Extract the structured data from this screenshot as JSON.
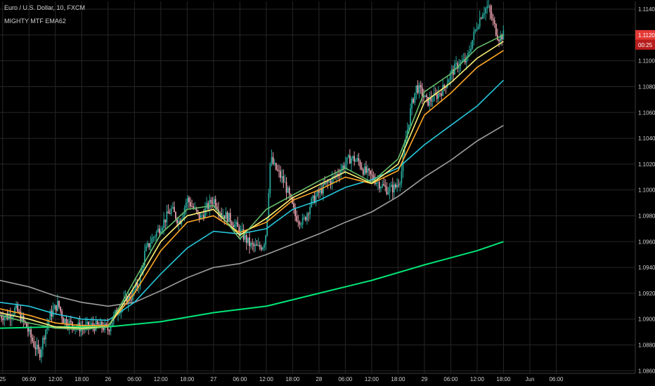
{
  "header": {
    "symbol_title": "Euro / U.S. Dollar, 10, FXCM",
    "indicator_title": "MIGHTY MTF EMA62"
  },
  "price_badge": {
    "value": "1.1120",
    "countdown": "00:25",
    "color": "#e53935"
  },
  "colors": {
    "background": "#000000",
    "grid": "#262626",
    "axis_text": "#cfcfcf",
    "candle_up": "#26a69a",
    "candle_down": "#e8a0ad"
  },
  "chart_data": {
    "type": "line",
    "title": "Euro / U.S. Dollar, 10, FXCM",
    "subtitle": "MIGHTY MTF EMA62",
    "xlabel": "",
    "ylabel": "",
    "grid": true,
    "ylim": [
      1.0858,
      1.1146
    ],
    "xlim": [
      -0.05,
      12.0
    ],
    "y_ticks": [
      "1.0860",
      "1.0880",
      "1.0900",
      "1.0920",
      "1.0940",
      "1.0960",
      "1.0980",
      "1.1000",
      "1.1020",
      "1.1040",
      "1.1060",
      "1.1080",
      "1.1100",
      "1.1120",
      "1.1140"
    ],
    "x_ticks": [
      {
        "label": "25",
        "x": 0
      },
      {
        "label": "06:00",
        "x": 0.5
      },
      {
        "label": "12:00",
        "x": 1
      },
      {
        "label": "18:00",
        "x": 1.5
      },
      {
        "label": "26",
        "x": 2
      },
      {
        "label": "06:00",
        "x": 2.5
      },
      {
        "label": "12:00",
        "x": 3
      },
      {
        "label": "18:00",
        "x": 3.5
      },
      {
        "label": "27",
        "x": 4
      },
      {
        "label": "06:00",
        "x": 4.5
      },
      {
        "label": "12:00",
        "x": 5
      },
      {
        "label": "18:00",
        "x": 5.5
      },
      {
        "label": "28",
        "x": 6
      },
      {
        "label": "06:00",
        "x": 6.5
      },
      {
        "label": "12:00",
        "x": 7
      },
      {
        "label": "18:00",
        "x": 7.5
      },
      {
        "label": "29",
        "x": 8
      },
      {
        "label": "06:00",
        "x": 8.5
      },
      {
        "label": "12:00",
        "x": 9
      },
      {
        "label": "18:00",
        "x": 9.5
      },
      {
        "label": "Jun",
        "x": 10
      },
      {
        "label": "06:00",
        "x": 10.5
      }
    ],
    "price_path": [
      [
        -0.05,
        1.0903
      ],
      [
        0.1,
        1.0902
      ],
      [
        0.25,
        1.0908
      ],
      [
        0.45,
        1.0894
      ],
      [
        0.6,
        1.088
      ],
      [
        0.7,
        1.0873
      ],
      [
        0.8,
        1.089
      ],
      [
        0.9,
        1.0903
      ],
      [
        1.05,
        1.0912
      ],
      [
        1.15,
        1.09
      ],
      [
        1.3,
        1.0896
      ],
      [
        1.5,
        1.0893
      ],
      [
        1.7,
        1.0895
      ],
      [
        1.9,
        1.0894
      ],
      [
        2.0,
        1.0892
      ],
      [
        2.15,
        1.0905
      ],
      [
        2.3,
        1.0913
      ],
      [
        2.45,
        1.0918
      ],
      [
        2.6,
        1.093
      ],
      [
        2.7,
        1.0952
      ],
      [
        2.85,
        1.0963
      ],
      [
        3.0,
        1.0972
      ],
      [
        3.2,
        1.0985
      ],
      [
        3.35,
        1.0975
      ],
      [
        3.5,
        1.0993
      ],
      [
        3.6,
        1.0987
      ],
      [
        3.75,
        1.0978
      ],
      [
        3.85,
        1.0985
      ],
      [
        4.0,
        1.0993
      ],
      [
        4.15,
        1.0982
      ],
      [
        4.3,
        1.0978
      ],
      [
        4.5,
        1.0968
      ],
      [
        4.7,
        1.0957
      ],
      [
        4.85,
        1.0955
      ],
      [
        4.95,
        1.0958
      ],
      [
        5.0,
        1.0968
      ],
      [
        5.08,
        1.1025
      ],
      [
        5.15,
        1.1018
      ],
      [
        5.25,
        1.1012
      ],
      [
        5.35,
        1.1005
      ],
      [
        5.45,
        1.0993
      ],
      [
        5.55,
        1.098
      ],
      [
        5.7,
        1.0975
      ],
      [
        5.85,
        1.099
      ],
      [
        6.0,
        1.0998
      ],
      [
        6.15,
        1.1005
      ],
      [
        6.3,
        1.101
      ],
      [
        6.45,
        1.1018
      ],
      [
        6.6,
        1.1025
      ],
      [
        6.75,
        1.1022
      ],
      [
        6.85,
        1.1015
      ],
      [
        7.0,
        1.101
      ],
      [
        7.15,
        1.1005
      ],
      [
        7.3,
        1.1
      ],
      [
        7.45,
        1.1002
      ],
      [
        7.55,
        1.101
      ],
      [
        7.65,
        1.104
      ],
      [
        7.75,
        1.1065
      ],
      [
        7.85,
        1.108
      ],
      [
        7.95,
        1.1075
      ],
      [
        8.05,
        1.1068
      ],
      [
        8.2,
        1.1072
      ],
      [
        8.35,
        1.1078
      ],
      [
        8.5,
        1.109
      ],
      [
        8.65,
        1.1098
      ],
      [
        8.8,
        1.11
      ],
      [
        8.9,
        1.1115
      ],
      [
        9.0,
        1.1128
      ],
      [
        9.1,
        1.1138
      ],
      [
        9.2,
        1.1142
      ],
      [
        9.3,
        1.113
      ],
      [
        9.4,
        1.1118
      ],
      [
        9.5,
        1.112
      ]
    ],
    "series": [
      {
        "color": "#00e676",
        "values": [
          [
            -0.05,
            1.0893
          ],
          [
            1.0,
            1.0894
          ],
          [
            2.0,
            1.0894
          ],
          [
            3.0,
            1.0898
          ],
          [
            4.0,
            1.0905
          ],
          [
            5.0,
            1.091
          ],
          [
            6.0,
            1.092
          ],
          [
            7.0,
            1.093
          ],
          [
            8.0,
            1.0942
          ],
          [
            9.0,
            1.0953
          ],
          [
            9.5,
            1.096
          ]
        ]
      },
      {
        "color": "#9e9e9e",
        "values": [
          [
            -0.05,
            1.093
          ],
          [
            0.5,
            1.0925
          ],
          [
            1.0,
            1.0918
          ],
          [
            1.5,
            1.0913
          ],
          [
            2.0,
            1.091
          ],
          [
            2.5,
            1.0913
          ],
          [
            3.0,
            1.0922
          ],
          [
            3.5,
            1.0932
          ],
          [
            4.0,
            1.094
          ],
          [
            4.5,
            1.0943
          ],
          [
            5.0,
            1.095
          ],
          [
            5.5,
            1.0958
          ],
          [
            6.0,
            1.0966
          ],
          [
            6.5,
            1.0975
          ],
          [
            7.0,
            1.0983
          ],
          [
            7.5,
            1.0995
          ],
          [
            8.0,
            1.101
          ],
          [
            8.5,
            1.1023
          ],
          [
            9.0,
            1.1038
          ],
          [
            9.5,
            1.105
          ]
        ]
      },
      {
        "color": "#26c6da",
        "values": [
          [
            -0.05,
            1.0913
          ],
          [
            0.5,
            1.091
          ],
          [
            1.0,
            1.0904
          ],
          [
            1.5,
            1.09
          ],
          [
            2.0,
            1.0899
          ],
          [
            2.5,
            1.0913
          ],
          [
            3.0,
            1.0935
          ],
          [
            3.5,
            1.0955
          ],
          [
            4.0,
            1.0968
          ],
          [
            4.5,
            1.0966
          ],
          [
            5.0,
            1.097
          ],
          [
            5.5,
            1.0985
          ],
          [
            6.0,
            1.0992
          ],
          [
            6.5,
            1.1002
          ],
          [
            7.0,
            1.1008
          ],
          [
            7.5,
            1.1017
          ],
          [
            8.0,
            1.1035
          ],
          [
            8.5,
            1.105
          ],
          [
            9.0,
            1.1065
          ],
          [
            9.5,
            1.1085
          ]
        ]
      },
      {
        "color": "#ffa726",
        "values": [
          [
            -0.05,
            1.0908
          ],
          [
            0.5,
            1.0903
          ],
          [
            1.0,
            1.0897
          ],
          [
            1.5,
            1.0895
          ],
          [
            2.0,
            1.0895
          ],
          [
            2.5,
            1.092
          ],
          [
            3.0,
            1.0953
          ],
          [
            3.5,
            1.0975
          ],
          [
            4.0,
            1.098
          ],
          [
            4.5,
            1.0967
          ],
          [
            5.0,
            1.0975
          ],
          [
            5.5,
            1.0992
          ],
          [
            6.0,
            1.1
          ],
          [
            6.5,
            1.101
          ],
          [
            7.0,
            1.1005
          ],
          [
            7.5,
            1.1015
          ],
          [
            8.0,
            1.1058
          ],
          [
            8.5,
            1.1075
          ],
          [
            9.0,
            1.1095
          ],
          [
            9.5,
            1.1108
          ]
        ]
      },
      {
        "color": "#fff176",
        "values": [
          [
            -0.05,
            1.0905
          ],
          [
            0.5,
            1.09
          ],
          [
            1.0,
            1.0894
          ],
          [
            1.5,
            1.0893
          ],
          [
            2.0,
            1.0894
          ],
          [
            2.5,
            1.0925
          ],
          [
            3.0,
            1.096
          ],
          [
            3.5,
            1.098
          ],
          [
            4.0,
            1.0985
          ],
          [
            4.5,
            1.0965
          ],
          [
            5.0,
            1.0978
          ],
          [
            5.5,
            1.0994
          ],
          [
            6.0,
            1.1004
          ],
          [
            6.5,
            1.1014
          ],
          [
            7.0,
            1.1005
          ],
          [
            7.5,
            1.102
          ],
          [
            8.0,
            1.1068
          ],
          [
            8.5,
            1.1083
          ],
          [
            9.0,
            1.1102
          ],
          [
            9.5,
            1.1115
          ]
        ]
      },
      {
        "color": "#66bb6a",
        "values": [
          [
            -0.05,
            1.0903
          ],
          [
            0.5,
            1.0897
          ],
          [
            1.0,
            1.0893
          ],
          [
            1.5,
            1.0892
          ],
          [
            2.0,
            1.0894
          ],
          [
            2.5,
            1.093
          ],
          [
            3.0,
            1.0966
          ],
          [
            3.5,
            1.0985
          ],
          [
            4.0,
            1.0988
          ],
          [
            4.5,
            1.0962
          ],
          [
            5.0,
            1.0985
          ],
          [
            5.5,
            1.0996
          ],
          [
            6.0,
            1.1007
          ],
          [
            6.5,
            1.1017
          ],
          [
            7.0,
            1.1006
          ],
          [
            7.5,
            1.1024
          ],
          [
            8.0,
            1.1076
          ],
          [
            8.5,
            1.109
          ],
          [
            9.0,
            1.111
          ],
          [
            9.5,
            1.112
          ]
        ]
      }
    ]
  }
}
